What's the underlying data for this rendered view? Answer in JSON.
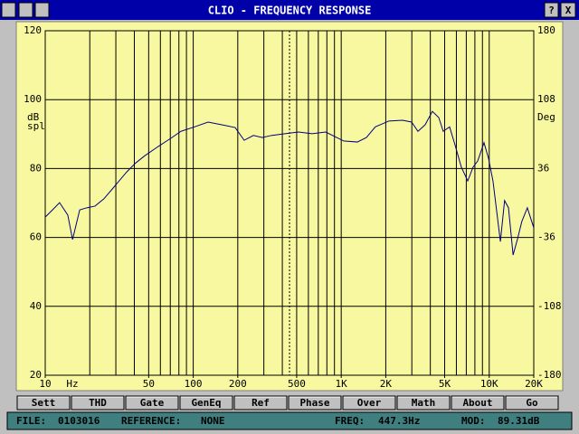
{
  "window": {
    "title": "CLIO - FREQUENCY RESPONSE",
    "help": "?",
    "close": "X"
  },
  "buttons": [
    "Sett",
    "THD",
    "Gate",
    "GenEq",
    "Ref",
    "Phase",
    "Over",
    "Math",
    "About",
    "Go"
  ],
  "status": {
    "file_label": "FILE:",
    "file": "0103016",
    "reference_label": "REFERENCE:",
    "reference": "NONE",
    "freq_label": "FREQ:",
    "freq": "447.3Hz",
    "mod_label": "MOD:",
    "mod": "89.31dB"
  },
  "chart_data": {
    "type": "line",
    "xscale": "log",
    "grid": true,
    "background": "#f8f8a0",
    "ylabel": [
      "dB",
      "spl"
    ],
    "y2label": "Deg",
    "xlabel": "Hz",
    "xlim": [
      10,
      20000
    ],
    "ylim": [
      20,
      120
    ],
    "y2lim": [
      -180,
      180
    ],
    "yticks": [
      20,
      40,
      60,
      80,
      100,
      120
    ],
    "y2ticks": [
      -180,
      -108,
      -36,
      36,
      108,
      180
    ],
    "xticks": [
      10,
      50,
      100,
      200,
      500,
      {
        "value": 1000,
        "label": "1K"
      },
      {
        "value": 2000,
        "label": "2K"
      },
      {
        "value": 5000,
        "label": "5K"
      },
      {
        "value": 10000,
        "label": "10K"
      },
      {
        "value": 20000,
        "label": "20K"
      }
    ],
    "xgrid": [
      20,
      30,
      40,
      50,
      60,
      70,
      80,
      90,
      100,
      200,
      300,
      400,
      500,
      600,
      700,
      800,
      900,
      1000,
      2000,
      3000,
      4000,
      5000,
      6000,
      7000,
      8000,
      9000,
      10000
    ],
    "cursor_x": 447.3,
    "x": [
      10,
      11.2,
      12.5,
      14.2,
      15.3,
      17.1,
      19.1,
      21.7,
      24.9,
      28.7,
      35.5,
      40.8,
      47,
      58,
      71.8,
      82.6,
      102,
      126,
      156,
      192,
      221,
      255,
      293,
      337,
      417,
      514,
      636,
      785,
      1040,
      1285,
      1480,
      1700,
      2100,
      2600,
      2990,
      3300,
      3690,
      4130,
      4560,
      4890,
      5400,
      5870,
      6480,
      7160,
      7780,
      8360,
      9220,
      9890,
      10600,
      11900,
      12700,
      13500,
      14500,
      15500,
      16600,
      18100,
      20000
    ],
    "series": [
      {
        "color": "#000080",
        "values": [
          65.9,
          68.0,
          70.1,
          66.5,
          59.4,
          68.0,
          68.6,
          69.1,
          71.2,
          74.3,
          79.0,
          81.6,
          83.7,
          86.4,
          89.0,
          90.8,
          92.1,
          93.5,
          92.7,
          91.9,
          88.2,
          89.6,
          89.0,
          89.6,
          90.1,
          90.6,
          90.1,
          90.6,
          88.0,
          87.7,
          89.0,
          92.1,
          93.8,
          94.0,
          93.5,
          90.8,
          92.7,
          96.6,
          94.8,
          90.8,
          92.1,
          86.9,
          80.4,
          76.4,
          80.4,
          82.2,
          87.5,
          83.0,
          76.4,
          58.8,
          70.7,
          68.6,
          54.9,
          59.4,
          64.6,
          68.6,
          62.8
        ]
      }
    ]
  }
}
